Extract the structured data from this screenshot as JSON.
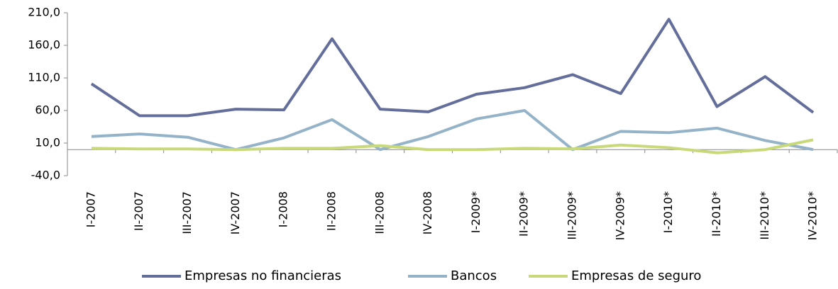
{
  "chart_data": {
    "type": "line",
    "categories": [
      "I-2007",
      "II-2007",
      "III-2007",
      "IV-2007",
      "I-2008",
      "II-2008",
      "III-2008",
      "IV-2008",
      "I-2009*",
      "II-2009*",
      "III-2009*",
      "IV-2009*",
      "I-2010*",
      "II-2010*",
      "III-2010*",
      "IV-2010*"
    ],
    "series": [
      {
        "name": "Empresas no financieras",
        "color": "#646e9b",
        "values": [
          101,
          52,
          52,
          62,
          61,
          170,
          62,
          58,
          85,
          95,
          115,
          86,
          200,
          66,
          112,
          57
        ]
      },
      {
        "name": "Bancos",
        "color": "#95b3c8",
        "values": [
          20,
          24,
          19,
          0,
          18,
          46,
          0,
          20,
          47,
          60,
          0,
          28,
          26,
          33,
          14,
          0
        ]
      },
      {
        "name": "Empresas de seguro",
        "color": "#c8d97a",
        "values": [
          2,
          1,
          1,
          0,
          2,
          2,
          6,
          0,
          0,
          2,
          1,
          7,
          3,
          -5,
          0,
          15
        ]
      }
    ],
    "ylim": [
      -40,
      210
    ],
    "yticks": [
      {
        "value": -40,
        "label": "-40,0"
      },
      {
        "value": 10,
        "label": "10,0"
      },
      {
        "value": 60,
        "label": "60,0"
      },
      {
        "value": 110,
        "label": "110,0"
      },
      {
        "value": 160,
        "label": "160,0"
      },
      {
        "value": 210,
        "label": "210,0"
      }
    ],
    "legend": "bottom"
  }
}
